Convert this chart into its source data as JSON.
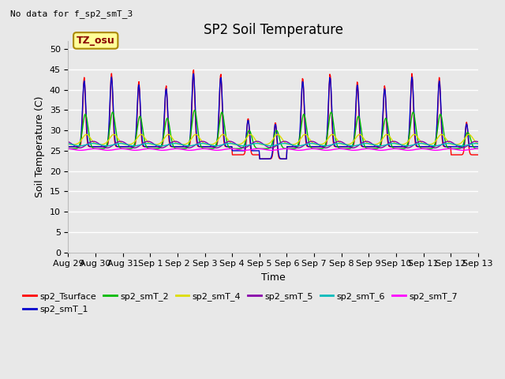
{
  "title": "SP2 Soil Temperature",
  "subtitle": "No data for f_sp2_smT_3",
  "ylabel": "Soil Temperature (C)",
  "xlabel": "Time",
  "timezone_label": "TZ_osu",
  "ylim": [
    0,
    52
  ],
  "yticks": [
    0,
    5,
    10,
    15,
    20,
    25,
    30,
    35,
    40,
    45,
    50
  ],
  "n_days": 15,
  "xtick_labels": [
    "Aug 29",
    "Aug 30",
    "Aug 31",
    "Sep 1",
    "Sep 2",
    "Sep 3",
    "Sep 4",
    "Sep 5",
    "Sep 6",
    "Sep 7",
    "Sep 8",
    "Sep 9",
    "Sep 10",
    "Sep 11",
    "Sep 12",
    "Sep 13"
  ],
  "series": {
    "sp2_Tsurface": {
      "color": "#FF0000",
      "lw": 1.0
    },
    "sp2_smT_1": {
      "color": "#0000CC",
      "lw": 1.0
    },
    "sp2_smT_2": {
      "color": "#00BB00",
      "lw": 1.0
    },
    "sp2_smT_4": {
      "color": "#DDDD00",
      "lw": 1.0
    },
    "sp2_smT_5": {
      "color": "#8800AA",
      "lw": 1.0
    },
    "sp2_smT_6": {
      "color": "#00BBBB",
      "lw": 1.0
    },
    "sp2_smT_7": {
      "color": "#FF00FF",
      "lw": 1.0
    }
  },
  "bg_color": "#E8E8E8",
  "grid_color": "#FFFFFF",
  "title_fontsize": 12,
  "axis_fontsize": 9,
  "tick_fontsize": 8,
  "legend_fontsize": 8,
  "tz_box_color": "#FFFF99",
  "tz_box_edge": "#AA8800",
  "tz_text_color": "#880000"
}
